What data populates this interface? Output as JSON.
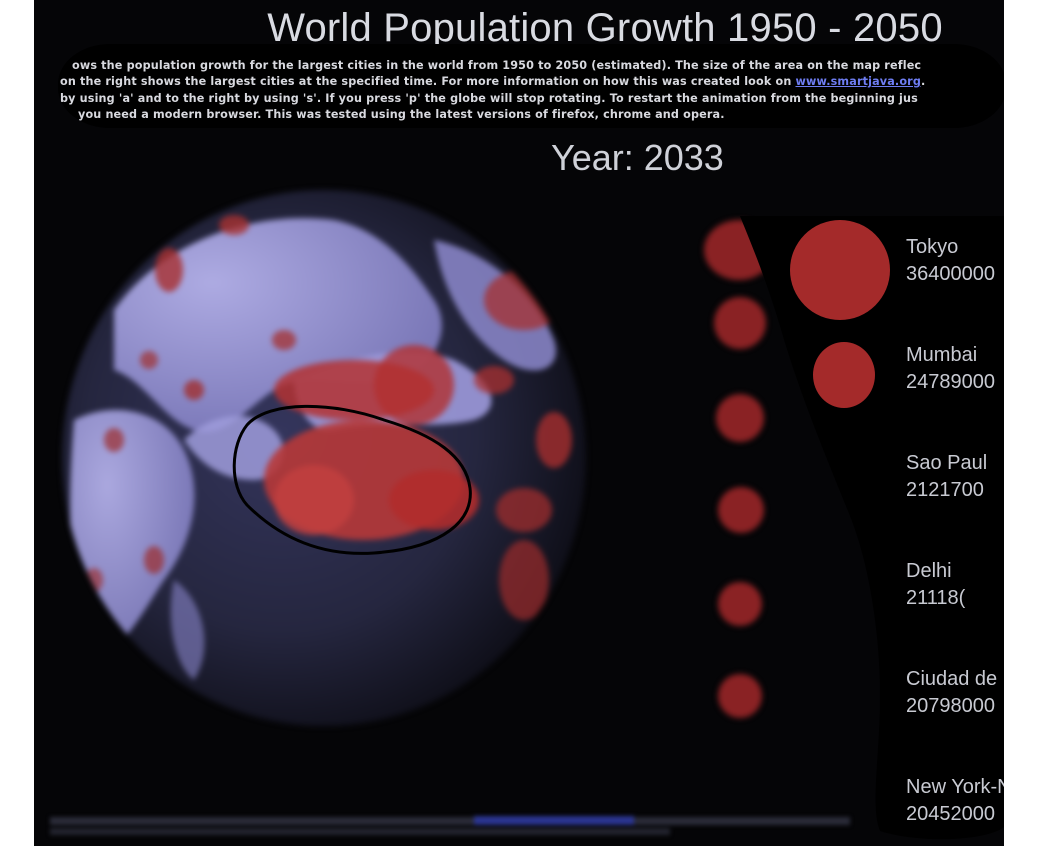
{
  "header": {
    "title": "World Population Growth 1950 - 2050"
  },
  "description": {
    "line1": "ows the population growth for the largest cities in the world from 1950 to 2050 (estimated). The size of the area on the map reflec",
    "line2_before": "on the right shows the largest cities at the specified time. For more information on how this was created look on ",
    "line2_link": "www.smartjava.org",
    "line2_after": ".",
    "line3": "by using 'a' and to the right by using 's'. If you press 'p' the globe will stop rotating. To restart the animation from the beginning jus",
    "line4": "you need a modern browser. This was tested using the latest versions of firefox, chrome and opera."
  },
  "year": {
    "label": "Year: 2033"
  },
  "ranking": {
    "cities": [
      {
        "name": "Tokyo",
        "population": "36400000"
      },
      {
        "name": "Mumbai",
        "population": "24789000"
      },
      {
        "name": "Sao Paul",
        "population": "2121700"
      },
      {
        "name": "Delhi",
        "population": "21118("
      },
      {
        "name": "Ciudad de",
        "population": "20798000"
      },
      {
        "name": "New York-Ne",
        "population": "20452000"
      }
    ]
  },
  "colors": {
    "background": "#050507",
    "city_marker": "#a42a2a",
    "text": "#c8cad2",
    "link": "#6e7df2",
    "globe_land": "#8f8dcf",
    "globe_ocean": "#23233d"
  },
  "icons": {
    "globe": "globe-icon"
  }
}
